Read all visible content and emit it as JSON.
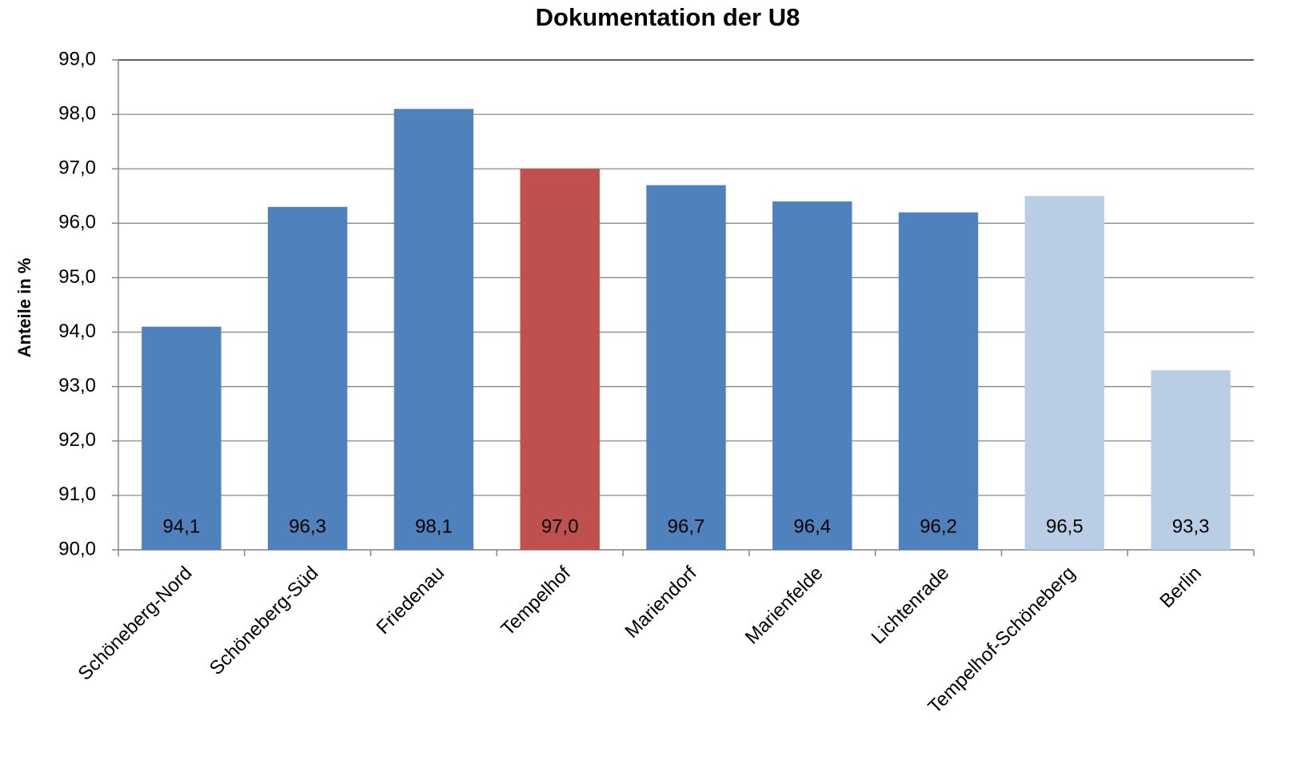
{
  "chart_data": {
    "type": "bar",
    "title": "Dokumentation der U8",
    "ylabel": "Anteile in %",
    "categories": [
      "Schöneberg-Nord",
      "Schöneberg-Süd",
      "Friedenau",
      "Tempelhof",
      "Mariendorf",
      "Marienfelde",
      "Lichtenrade",
      "Tempelhof-Schöneberg",
      "Berlin"
    ],
    "values": [
      94.1,
      96.3,
      98.1,
      97.0,
      96.7,
      96.4,
      96.2,
      96.5,
      93.3
    ],
    "value_labels": [
      "94,1",
      "96,3",
      "98,1",
      "97,0",
      "96,7",
      "96,4",
      "96,2",
      "96,5",
      "93,3"
    ],
    "colors": [
      "#4f81bd",
      "#4f81bd",
      "#4f81bd",
      "#c0504d",
      "#4f81bd",
      "#4f81bd",
      "#4f81bd",
      "#b9cde5",
      "#b9cde5"
    ],
    "ylim": [
      90,
      99
    ],
    "yticks": [
      {
        "value": 90,
        "label": "90,0"
      },
      {
        "value": 91,
        "label": "91,0"
      },
      {
        "value": 92,
        "label": "92,0"
      },
      {
        "value": 93,
        "label": "93,0"
      },
      {
        "value": 94,
        "label": "94,0"
      },
      {
        "value": 95,
        "label": "95,0"
      },
      {
        "value": 96,
        "label": "96,0"
      },
      {
        "value": 97,
        "label": "97,0"
      },
      {
        "value": 98,
        "label": "98,0"
      },
      {
        "value": 99,
        "label": "99,0"
      }
    ],
    "grid": true
  }
}
